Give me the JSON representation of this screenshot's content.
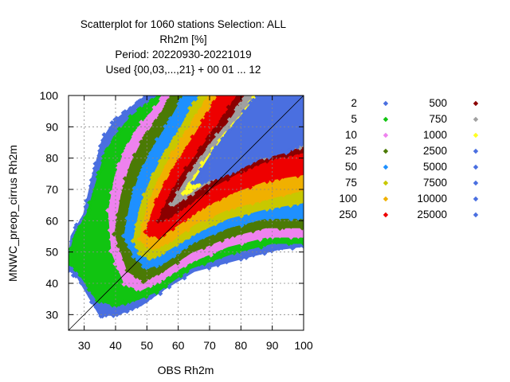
{
  "chart_data": {
    "type": "scatter",
    "title_lines": [
      "Scatterplot for 1060 stations Selection: ALL",
      "Rh2m [%]",
      "Period: 20220930-20221019",
      "Used {00,03,...,21} + 00 01 ... 12"
    ],
    "xlabel": "OBS Rh2m",
    "ylabel": "MNWC_preop_cirrus Rh2m",
    "xlim": [
      25,
      100
    ],
    "ylim": [
      25,
      100
    ],
    "x_ticks": [
      "30",
      "40",
      "50",
      "60",
      "70",
      "80",
      "90",
      "100"
    ],
    "y_ticks": [
      "30",
      "40",
      "50",
      "60",
      "70",
      "80",
      "90",
      "100"
    ],
    "grid": true,
    "diagonal_line": "y=x",
    "legend_placement": "right",
    "legend": [
      {
        "label": "2",
        "color": "#4a6fe0"
      },
      {
        "label": "5",
        "color": "#11c411"
      },
      {
        "label": "10",
        "color": "#ee82ee"
      },
      {
        "label": "25",
        "color": "#4b7a05"
      },
      {
        "label": "50",
        "color": "#1e90ff"
      },
      {
        "label": "75",
        "color": "#c8c800"
      },
      {
        "label": "100",
        "color": "#f0b000"
      },
      {
        "label": "250",
        "color": "#ee0000"
      },
      {
        "label": "500",
        "color": "#8b0000"
      },
      {
        "label": "750",
        "color": "#a0a0a0"
      },
      {
        "label": "1000",
        "color": "#ffff22"
      },
      {
        "label": "2500",
        "color": "#4a6fe0"
      },
      {
        "label": "5000",
        "color": "#4a6fe0"
      },
      {
        "label": "7500",
        "color": "#4a6fe0"
      },
      {
        "label": "10000",
        "color": "#4a6fe0"
      },
      {
        "label": "25000",
        "color": "#4a6fe0"
      }
    ],
    "density_regions": [
      {
        "level": "2",
        "color": "#4a6fe0",
        "polygon": [
          [
            25,
            45
          ],
          [
            26,
            55
          ],
          [
            30,
            62
          ],
          [
            33,
            75
          ],
          [
            36,
            86
          ],
          [
            40,
            92
          ],
          [
            45,
            96
          ],
          [
            50,
            100
          ],
          [
            100,
            100
          ],
          [
            100,
            52
          ],
          [
            92,
            51
          ],
          [
            80,
            48
          ],
          [
            65,
            44
          ],
          [
            55,
            38
          ],
          [
            48,
            33
          ],
          [
            40,
            30
          ],
          [
            35,
            30
          ],
          [
            28,
            42
          ]
        ]
      },
      {
        "level": "5",
        "color": "#11c411",
        "polygon": [
          [
            25,
            47
          ],
          [
            27,
            55
          ],
          [
            31,
            62
          ],
          [
            34,
            72
          ],
          [
            37,
            82
          ],
          [
            41,
            88
          ],
          [
            45,
            93
          ],
          [
            50,
            97
          ],
          [
            54,
            100
          ],
          [
            100,
            100
          ],
          [
            100,
            53
          ],
          [
            90,
            53
          ],
          [
            78,
            50
          ],
          [
            64,
            45
          ],
          [
            54,
            38
          ],
          [
            47,
            35
          ],
          [
            40,
            33
          ],
          [
            34,
            35
          ],
          [
            28,
            44
          ]
        ]
      },
      {
        "level": "10",
        "color": "#ee82ee",
        "polygon": [
          [
            38,
            63
          ],
          [
            40,
            74
          ],
          [
            43,
            82
          ],
          [
            47,
            89
          ],
          [
            52,
            95
          ],
          [
            56,
            100
          ],
          [
            100,
            100
          ],
          [
            100,
            55
          ],
          [
            88,
            55
          ],
          [
            76,
            52
          ],
          [
            64,
            47
          ],
          [
            54,
            41
          ],
          [
            48,
            38
          ],
          [
            43,
            40
          ],
          [
            39,
            50
          ]
        ]
      },
      {
        "level": "25",
        "color": "#4b7a05",
        "polygon": [
          [
            40,
            56
          ],
          [
            42,
            68
          ],
          [
            45,
            78
          ],
          [
            49,
            86
          ],
          [
            54,
            93
          ],
          [
            58,
            100
          ],
          [
            100,
            100
          ],
          [
            100,
            58
          ],
          [
            88,
            58
          ],
          [
            76,
            55
          ],
          [
            64,
            50
          ],
          [
            55,
            44
          ],
          [
            49,
            41
          ],
          [
            44,
            44
          ]
        ]
      },
      {
        "level": "50",
        "color": "#1e90ff",
        "polygon": [
          [
            43,
            55
          ],
          [
            45,
            66
          ],
          [
            48,
            75
          ],
          [
            52,
            83
          ],
          [
            57,
            91
          ],
          [
            62,
            100
          ],
          [
            100,
            100
          ],
          [
            100,
            61
          ],
          [
            88,
            61
          ],
          [
            76,
            58
          ],
          [
            64,
            53
          ],
          [
            56,
            47
          ],
          [
            50,
            45
          ],
          [
            46,
            49
          ]
        ]
      },
      {
        "level": "75",
        "color": "#c8c800",
        "polygon": [
          [
            46,
            54
          ],
          [
            48,
            64
          ],
          [
            51,
            72
          ],
          [
            55,
            80
          ],
          [
            60,
            88
          ],
          [
            65,
            97
          ],
          [
            68,
            100
          ],
          [
            100,
            100
          ],
          [
            100,
            66
          ],
          [
            88,
            64
          ],
          [
            76,
            61
          ],
          [
            65,
            56
          ],
          [
            57,
            51
          ],
          [
            51,
            48
          ],
          [
            48,
            50
          ]
        ]
      },
      {
        "level": "100",
        "color": "#f0b000",
        "polygon": [
          [
            48,
            54
          ],
          [
            50,
            63
          ],
          [
            53,
            71
          ],
          [
            57,
            79
          ],
          [
            62,
            87
          ],
          [
            67,
            95
          ],
          [
            70,
            100
          ],
          [
            100,
            100
          ],
          [
            100,
            70
          ],
          [
            88,
            67
          ],
          [
            76,
            64
          ],
          [
            65,
            59
          ],
          [
            58,
            54
          ],
          [
            52,
            51
          ]
        ]
      },
      {
        "level": "250",
        "color": "#ee0000",
        "polygon": [
          [
            50,
            56
          ],
          [
            52,
            63
          ],
          [
            55,
            70
          ],
          [
            59,
            77
          ],
          [
            64,
            85
          ],
          [
            69,
            93
          ],
          [
            73,
            100
          ],
          [
            100,
            100
          ],
          [
            100,
            75
          ],
          [
            88,
            73
          ],
          [
            77,
            69
          ],
          [
            67,
            64
          ],
          [
            60,
            59
          ],
          [
            54,
            55
          ]
        ]
      },
      {
        "level": "500",
        "color": "#8b0000",
        "polygon": [
          [
            54,
            60
          ],
          [
            57,
            67
          ],
          [
            61,
            74
          ],
          [
            66,
            81
          ],
          [
            71,
            88
          ],
          [
            76,
            95
          ],
          [
            79,
            100
          ],
          [
            100,
            100
          ],
          [
            100,
            82
          ],
          [
            90,
            80
          ],
          [
            80,
            76
          ],
          [
            71,
            71
          ],
          [
            64,
            66
          ],
          [
            58,
            62
          ]
        ]
      },
      {
        "level": "750",
        "color": "#a0a0a0",
        "polygon": [
          [
            58,
            65
          ],
          [
            62,
            72
          ],
          [
            66,
            78
          ],
          [
            71,
            85
          ],
          [
            76,
            91
          ],
          [
            80,
            97
          ],
          [
            82,
            100
          ],
          [
            100,
            100
          ],
          [
            100,
            84
          ],
          [
            92,
            82
          ],
          [
            82,
            79
          ],
          [
            73,
            75
          ],
          [
            66,
            70
          ],
          [
            61,
            67
          ]
        ]
      },
      {
        "level": "1000",
        "color": "#ffff22",
        "polygon": [
          [
            62,
            69
          ],
          [
            66,
            75
          ],
          [
            70,
            81
          ],
          [
            74,
            86
          ],
          [
            79,
            92
          ],
          [
            83,
            97
          ],
          [
            85,
            100
          ],
          [
            100,
            100
          ],
          [
            100,
            86
          ],
          [
            93,
            84
          ],
          [
            85,
            82
          ],
          [
            76,
            77
          ],
          [
            69,
            73
          ],
          [
            64,
            70
          ]
        ]
      },
      {
        "level": "2500",
        "color": "#4a6fe0",
        "polygon": [
          [
            65,
            72
          ],
          [
            70,
            80
          ],
          [
            75,
            87
          ],
          [
            80,
            93
          ],
          [
            84,
            98
          ],
          [
            86,
            100
          ],
          [
            100,
            100
          ],
          [
            100,
            85
          ],
          [
            94,
            82
          ],
          [
            86,
            80
          ],
          [
            78,
            76
          ],
          [
            70,
            73
          ]
        ]
      }
    ]
  }
}
